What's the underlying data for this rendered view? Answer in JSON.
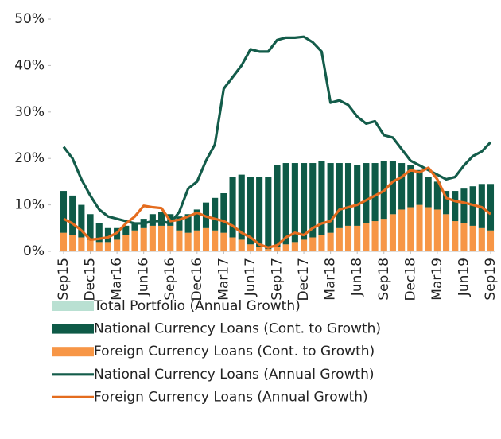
{
  "chart_data": {
    "type": "bar-line",
    "categories": [
      "Sep15",
      null,
      null,
      "Dec15",
      null,
      null,
      "Mar16",
      null,
      null,
      "Jun16",
      null,
      null,
      "Sep16",
      null,
      null,
      "Dec16",
      null,
      null,
      "Mar17",
      null,
      null,
      "Jun17",
      null,
      null,
      "Sep17",
      null,
      null,
      "Dec17",
      null,
      null,
      "Mar18",
      null,
      null,
      "Jun18",
      null,
      null,
      "Sep18",
      null,
      null,
      "Dec18",
      null,
      null,
      "Mar19",
      null,
      null,
      "Jun19",
      null,
      null,
      "Sep19"
    ],
    "series": [
      {
        "name": "Total Portfolio (Annual Growth)",
        "kind": "bar",
        "color": "#b9e0d2",
        "values": [
          13,
          12,
          10,
          8,
          6,
          5,
          5,
          5.5,
          6,
          7,
          8,
          8.5,
          8,
          7.5,
          8,
          9,
          10.5,
          11.5,
          12.5,
          16,
          16.5,
          16,
          16,
          16,
          18.5,
          19,
          19,
          19,
          19,
          19.5,
          19,
          19,
          19,
          18.5,
          19,
          19,
          19.5,
          19.5,
          19,
          18.5,
          17.5,
          16,
          15,
          13,
          13,
          13.5,
          14,
          14.5,
          14.5
        ]
      },
      {
        "name": "National Currency Loans (Cont. to Growth)",
        "kind": "stacked",
        "color": "#0e5a47",
        "values": [
          9,
          8.5,
          7,
          5.5,
          4,
          3,
          2.5,
          2,
          1.5,
          2,
          2.5,
          3,
          2.5,
          3,
          4,
          4.5,
          5.5,
          7,
          8.5,
          13,
          14,
          14.5,
          15,
          15.5,
          17.5,
          17.5,
          17,
          16.5,
          16,
          16,
          15,
          14,
          13.5,
          13,
          13,
          12.5,
          12.5,
          11.5,
          10,
          9,
          7.5,
          6.5,
          6,
          5,
          6.5,
          7.5,
          8.5,
          9.5,
          10
        ]
      },
      {
        "name": "Foreign Currency Loans (Cont. to Growth)",
        "kind": "stacked",
        "color": "#f79646",
        "values": [
          4,
          3.5,
          3,
          2.5,
          2,
          2,
          2.5,
          3.5,
          4.5,
          5,
          5.5,
          5.5,
          5.5,
          4.5,
          4,
          4.5,
          5,
          4.5,
          4,
          3,
          2.5,
          1.5,
          1,
          0.5,
          1,
          1.5,
          2,
          2.5,
          3,
          3.5,
          4,
          5,
          5.5,
          5.5,
          6,
          6.5,
          7,
          8,
          9,
          9.5,
          10,
          9.5,
          9,
          8,
          6.5,
          6,
          5.5,
          5,
          4.5
        ]
      },
      {
        "name": "National Currency Loans (Annual Growth)",
        "kind": "line",
        "color": "#135c4a",
        "values": [
          22.5,
          20,
          15.5,
          12,
          9,
          7.5,
          7,
          6.5,
          6,
          6,
          6.5,
          6.5,
          6,
          8.5,
          13.5,
          15,
          19.5,
          23,
          35,
          37.5,
          40,
          43.5,
          43,
          43,
          45.5,
          46,
          46,
          46.2,
          45,
          43,
          32,
          32.5,
          31.5,
          29,
          27.5,
          28,
          25,
          24.5,
          22,
          19.5,
          18.5,
          17.5,
          16.5,
          15.5,
          16,
          18.5,
          20.5,
          21.5,
          23.5
        ]
      },
      {
        "name": "Foreign Currency Loans (Annual Growth)",
        "kind": "line",
        "color": "#e46c1e",
        "values": [
          7,
          6,
          4.5,
          2.5,
          2.7,
          3,
          4,
          6,
          7.5,
          9.8,
          9.5,
          9.3,
          6.5,
          6.8,
          7.5,
          8.3,
          7.5,
          7,
          6.5,
          5.5,
          4,
          3,
          1.5,
          0.8,
          1.3,
          3,
          4,
          3.5,
          5,
          6,
          6.5,
          9,
          9.5,
          10,
          11,
          12,
          13,
          15,
          16,
          17.5,
          17,
          18,
          15.5,
          11.5,
          10.8,
          10.5,
          10,
          9.5,
          8
        ]
      }
    ],
    "ylim": [
      0,
      50
    ],
    "yticks": [
      {
        "value": 0,
        "label": "0%"
      },
      {
        "value": 10,
        "label": "10%"
      },
      {
        "value": 20,
        "label": "20%"
      },
      {
        "value": 30,
        "label": "30%"
      },
      {
        "value": 40,
        "label": "40%"
      },
      {
        "value": 50,
        "label": "50%"
      }
    ],
    "grid": false
  }
}
